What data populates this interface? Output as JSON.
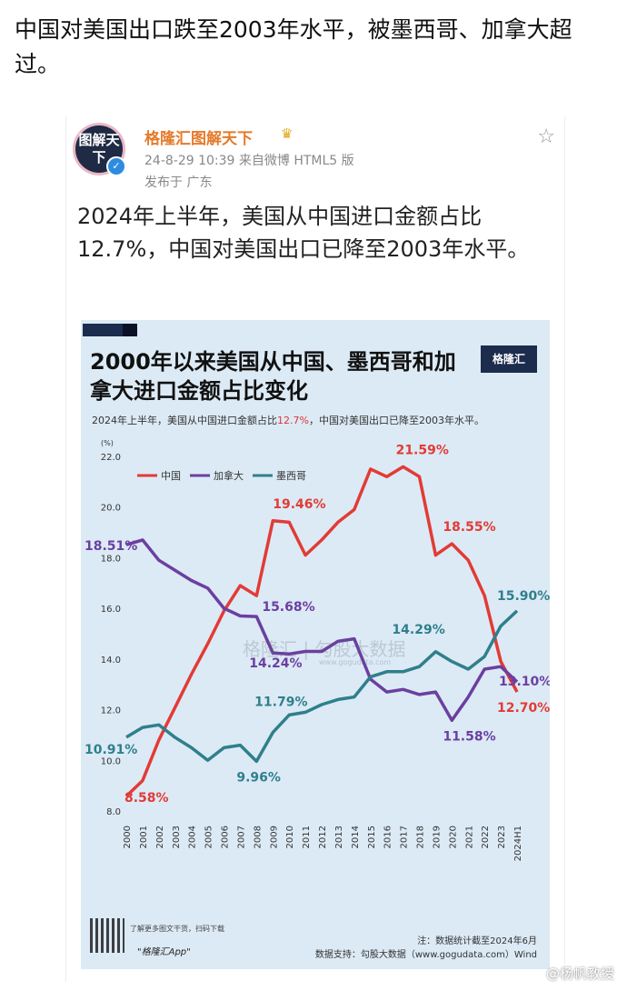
{
  "headline": "中国对美国出口跌至2003年水平，被墨西哥、加拿大超过。",
  "post": {
    "avatar_text": "图解天下",
    "author": "格隆汇图解天下",
    "crown_icon": "crown-icon",
    "meta": "24-8-29 10:39  来自微博 HTML5 版",
    "location": "发布于 广东",
    "star_icon": "star-icon",
    "text": "2024年上半年，美国从中国进口金额占比12.7%，中国对美国出口已降至2003年水平。"
  },
  "card": {
    "title": "2000年以来美国从中国、墨西哥和加拿大进口金额占比变化",
    "subtitle_pre": "2024年上半年，美国从中国进口金额占比",
    "subtitle_hl": "12.7%",
    "subtitle_post": "，中国对美国出口已降至2003年水平。",
    "logo": "格隆汇",
    "watermark": "格隆汇 | 勾股大数据",
    "watermark_url": "www.gogudata.com",
    "note": "注：数据统计截至2024年6月",
    "source": "数据支持：勾股大数据（www.gogudata.com）Wind",
    "qr_text": "了解更多图文干货，扫码下载",
    "qr_app": "\"格隆汇App\"",
    "weibo_watermark": "@杨帆教授"
  },
  "chart_data": {
    "type": "line",
    "title": "2000年以来美国从中国、墨西哥和加拿大进口金额占比变化",
    "ylabel": "(%)",
    "ylim": [
      8.0,
      22.0
    ],
    "yticks": [
      "8.0",
      "10.0",
      "12.0",
      "14.0",
      "16.0",
      "18.0",
      "20.0",
      "22.0"
    ],
    "categories": [
      "2000",
      "2001",
      "2002",
      "2003",
      "2004",
      "2005",
      "2006",
      "2007",
      "2008",
      "2009",
      "2010",
      "2011",
      "2012",
      "2013",
      "2014",
      "2015",
      "2016",
      "2017",
      "2018",
      "2019",
      "2020",
      "2021",
      "2022",
      "2023",
      "2024H1"
    ],
    "legend_placement": "top-left",
    "series": [
      {
        "name": "中国",
        "color": "#e23b35",
        "values": [
          8.58,
          9.2,
          10.8,
          12.1,
          13.4,
          14.6,
          15.9,
          16.9,
          16.5,
          19.46,
          19.4,
          18.1,
          18.7,
          19.4,
          19.9,
          21.5,
          21.2,
          21.59,
          21.2,
          18.1,
          18.55,
          17.9,
          16.5,
          13.9,
          12.7
        ],
        "labels": [
          {
            "i": 0,
            "text": "8.58%"
          },
          {
            "i": 9,
            "text": "19.46%"
          },
          {
            "i": 17,
            "text": "21.59%"
          },
          {
            "i": 20,
            "text": "18.55%"
          },
          {
            "i": 24,
            "text": "12.70%"
          }
        ]
      },
      {
        "name": "加拿大",
        "color": "#6b3fa0",
        "values": [
          18.51,
          18.7,
          17.9,
          17.5,
          17.1,
          16.8,
          16.0,
          15.7,
          15.68,
          14.24,
          14.2,
          14.3,
          14.3,
          14.7,
          14.8,
          13.2,
          12.7,
          12.8,
          12.6,
          12.7,
          11.58,
          12.5,
          13.6,
          13.7,
          13.1
        ],
        "labels": [
          {
            "i": 0,
            "text": "18.51%"
          },
          {
            "i": 8,
            "text": "15.68%"
          },
          {
            "i": 9,
            "text": "14.24%"
          },
          {
            "i": 20,
            "text": "11.58%"
          },
          {
            "i": 24,
            "text": "13.10%"
          }
        ]
      },
      {
        "name": "墨西哥",
        "color": "#2f7f8c",
        "values": [
          10.91,
          11.3,
          11.4,
          10.9,
          10.5,
          10.0,
          10.5,
          10.6,
          9.96,
          11.1,
          11.79,
          11.9,
          12.2,
          12.4,
          12.5,
          13.3,
          13.5,
          13.5,
          13.7,
          14.29,
          13.9,
          13.6,
          14.1,
          15.3,
          15.9
        ],
        "labels": [
          {
            "i": 0,
            "text": "10.91%"
          },
          {
            "i": 8,
            "text": "9.96%"
          },
          {
            "i": 10,
            "text": "11.79%"
          },
          {
            "i": 19,
            "text": "14.29%"
          },
          {
            "i": 24,
            "text": "15.90%"
          }
        ]
      }
    ]
  }
}
